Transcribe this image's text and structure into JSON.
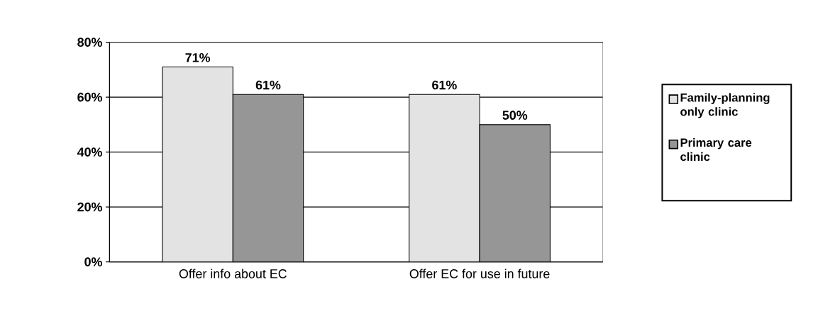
{
  "chart_data": {
    "type": "bar",
    "categories": [
      "Offer info about EC",
      "Offer EC for use in future"
    ],
    "series": [
      {
        "name": "Family-planning only clinic",
        "color": "#e3e3e3",
        "values": [
          71,
          61
        ],
        "value_labels": [
          "71%",
          "61%"
        ]
      },
      {
        "name": "Primary care clinic",
        "color": "#969696",
        "values": [
          61,
          50
        ],
        "value_labels": [
          "61%",
          "50%"
        ]
      }
    ],
    "ylim": [
      0,
      80
    ],
    "yticks": [
      {
        "value": 0,
        "label": "0%"
      },
      {
        "value": 20,
        "label": "20%"
      },
      {
        "value": 40,
        "label": "40%"
      },
      {
        "value": 60,
        "label": "60%"
      },
      {
        "value": 80,
        "label": "80%"
      }
    ],
    "grid": "y",
    "legend": "right"
  }
}
